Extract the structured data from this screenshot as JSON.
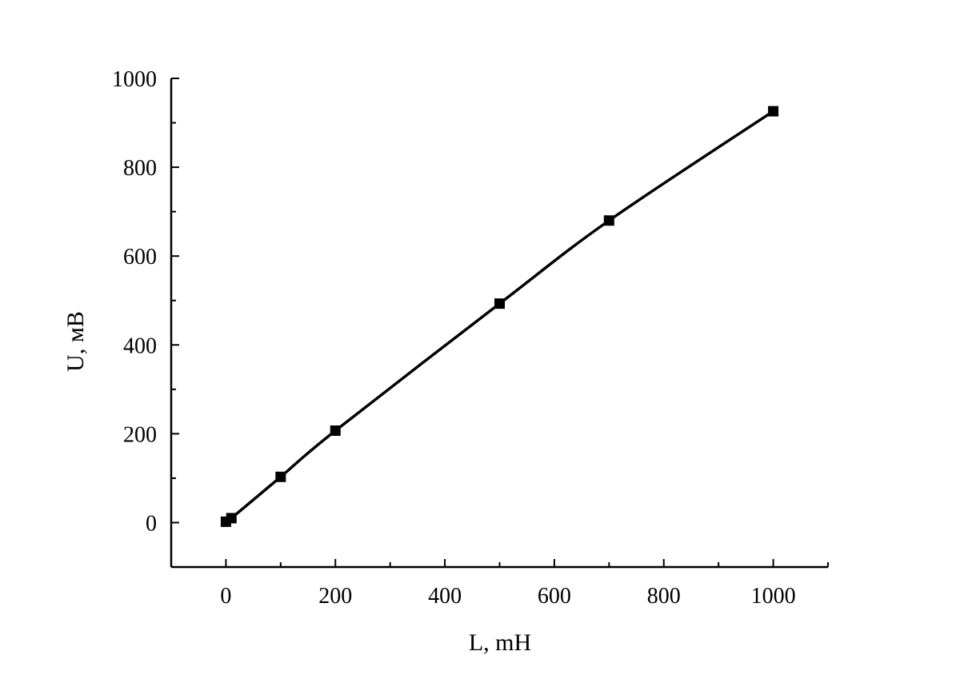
{
  "chart_data": {
    "type": "line",
    "title": "",
    "xlabel": "L,  mH",
    "ylabel": "U, мВ",
    "xlim": [
      -100,
      1100
    ],
    "ylim": [
      -100,
      1000
    ],
    "x_ticks": [
      0,
      200,
      400,
      600,
      800,
      1000
    ],
    "y_ticks": [
      0,
      200,
      400,
      600,
      800,
      1000
    ],
    "grid": false,
    "series": [
      {
        "marker": "square",
        "color": "#000000",
        "x": [
          0,
          10,
          100,
          200,
          500,
          700,
          1000
        ],
        "y": [
          2,
          10,
          103,
          207,
          493,
          680,
          926
        ]
      }
    ]
  }
}
